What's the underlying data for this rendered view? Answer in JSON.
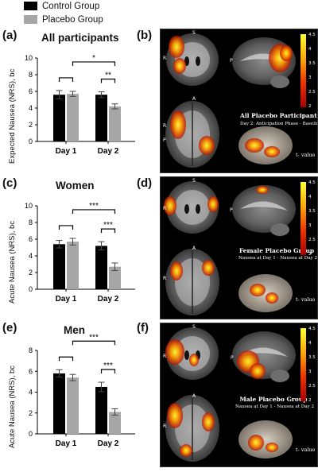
{
  "legend": {
    "items": [
      {
        "label": "Control Group",
        "color": "#000000"
      },
      {
        "label": "Placebo Group",
        "color": "#a6a6a6"
      }
    ]
  },
  "panel_letters": [
    "(a)",
    "(b)",
    "(c)",
    "(d)",
    "(e)",
    "(f)"
  ],
  "chart_data": [
    {
      "type": "bar",
      "title": "All participants",
      "ylabel": "Expected Nausea (NRS), bc",
      "categories": [
        "Day 1",
        "Day 2"
      ],
      "yticks": [
        "0",
        "2",
        "4",
        "6",
        "8",
        "10"
      ],
      "ylim": [
        0,
        10
      ],
      "series": [
        {
          "name": "Control Group",
          "values": [
            5.6,
            5.6
          ],
          "errors": [
            0.5,
            0.35
          ]
        },
        {
          "name": "Placebo Group",
          "values": [
            5.7,
            4.2
          ],
          "errors": [
            0.3,
            0.3
          ]
        }
      ],
      "significance": [
        {
          "label": "",
          "between": "Day 1 groups"
        },
        {
          "label": "**",
          "between": "Day 2 groups"
        },
        {
          "label": "*",
          "between": "Placebo Day 1 vs Day 2"
        }
      ]
    },
    {
      "type": "bar",
      "title": "Women",
      "ylabel": "Acute Nausea (NRS), bc",
      "categories": [
        "Day 1",
        "Day 2"
      ],
      "yticks": [
        "0",
        "2",
        "4",
        "6",
        "8",
        "10"
      ],
      "ylim": [
        0,
        10
      ],
      "series": [
        {
          "name": "Control Group",
          "values": [
            5.4,
            5.2
          ],
          "errors": [
            0.45,
            0.5
          ]
        },
        {
          "name": "Placebo Group",
          "values": [
            5.7,
            2.7
          ],
          "errors": [
            0.4,
            0.45
          ]
        }
      ],
      "significance": [
        {
          "label": "",
          "between": "Day 1 groups"
        },
        {
          "label": "***",
          "between": "Day 2 groups"
        },
        {
          "label": "***",
          "between": "Placebo Day 1 vs Day 2"
        }
      ]
    },
    {
      "type": "bar",
      "title": "Men",
      "ylabel": "Acute Nausea (NRS), bc",
      "categories": [
        "Day 1",
        "Day 2"
      ],
      "yticks": [
        "0",
        "2",
        "4",
        "6",
        "8"
      ],
      "ylim": [
        0,
        8
      ],
      "series": [
        {
          "name": "Control Group",
          "values": [
            5.8,
            4.5
          ],
          "errors": [
            0.35,
            0.45
          ]
        },
        {
          "name": "Placebo Group",
          "values": [
            5.4,
            2.1
          ],
          "errors": [
            0.3,
            0.3
          ]
        }
      ],
      "significance": [
        {
          "label": "",
          "between": "Day 1 groups"
        },
        {
          "label": "***",
          "between": "Day 2 groups"
        },
        {
          "label": "***",
          "between": "Placebo Day 1 vs Day 2"
        }
      ]
    }
  ],
  "brain_panels": [
    {
      "title": "All Placebo Participants",
      "subtitle": "Day 2: Anticipation Phase - Baseline",
      "colorbar_ticks": [
        "4.5",
        "4",
        "3.5",
        "3",
        "2.5",
        "2"
      ],
      "colorbar_label": "t- value",
      "orient": [
        "S",
        "R",
        "P",
        "A",
        "R",
        "P"
      ]
    },
    {
      "title": "Female Placebo Group",
      "subtitle": "Nausea at Day 1 - Nausea at Day 2",
      "colorbar_ticks": [
        "4.5",
        "4",
        "3.5",
        "3",
        "2.5",
        "2"
      ],
      "colorbar_label": "t- value",
      "orient": [
        "S",
        "R",
        "P",
        "A",
        "R"
      ]
    },
    {
      "title": "Male Placebo Group",
      "subtitle": "Nausea at Day 1 - Nausea at Day 2",
      "colorbar_ticks": [
        "4.5",
        "4",
        "3.5",
        "3",
        "2.5",
        "2"
      ],
      "colorbar_label": "t- value",
      "orient": [
        "S",
        "R",
        "P",
        "A",
        "R"
      ]
    }
  ],
  "colors": {
    "control": "#000000",
    "placebo": "#a6a6a6",
    "activation_high": "#ffff33",
    "activation_low": "#aa0000"
  }
}
